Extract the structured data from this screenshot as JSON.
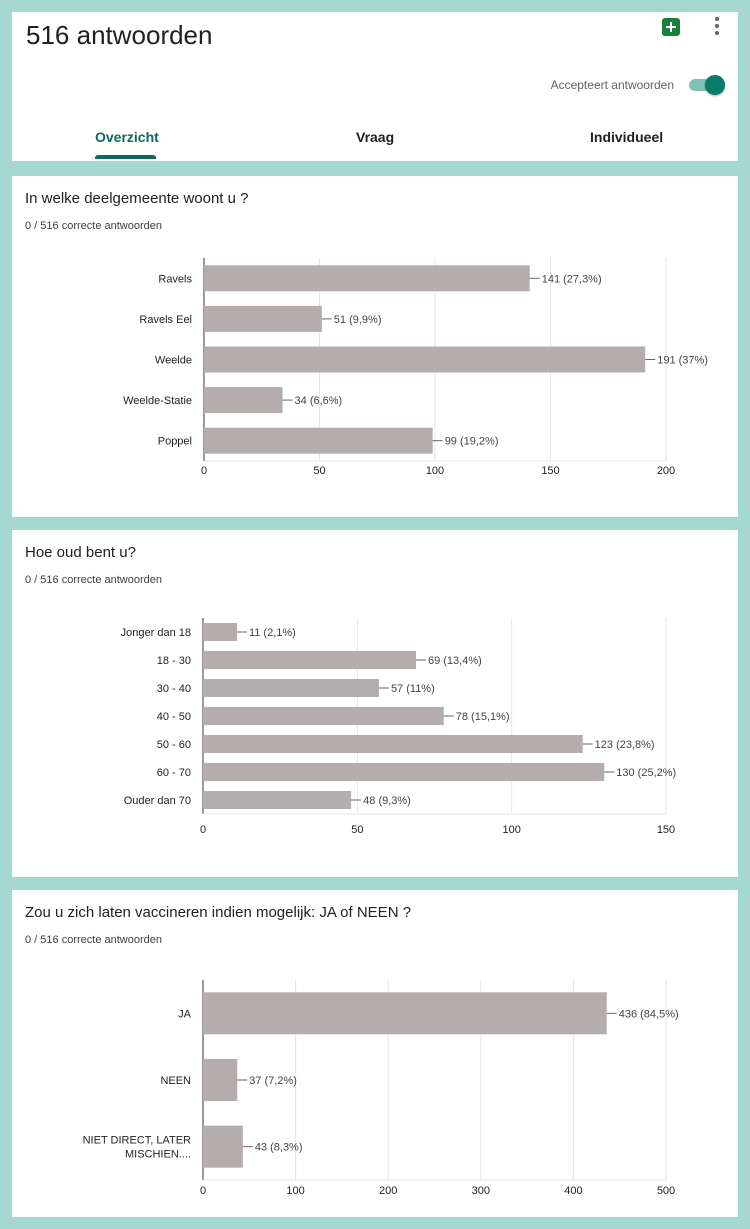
{
  "header": {
    "title": "516 antwoorden",
    "sheets_icon": "google-sheets-icon",
    "more_icon": "more-vertical-icon",
    "accepting_label": "Accepteert antwoorden",
    "accepting": true,
    "tabs": [
      {
        "label": "Overzicht",
        "active": true
      },
      {
        "label": "Vraag",
        "active": false
      },
      {
        "label": "Individueel",
        "active": false
      }
    ]
  },
  "colors": {
    "background": "#a6d8d2",
    "bar": "#b5adad",
    "accent": "#0c6b5e"
  },
  "questions": [
    {
      "title": "In welke deelgemeente woont u ?",
      "subtitle": "0 / 516 correcte antwoorden"
    },
    {
      "title": "Hoe oud bent u?",
      "subtitle": "0 / 516 correcte antwoorden"
    },
    {
      "title": "Zou u zich laten vaccineren indien mogelijk: JA of NEEN ?",
      "subtitle": "0 / 516 correcte antwoorden"
    }
  ],
  "chart_data": [
    {
      "type": "bar",
      "orientation": "horizontal",
      "categories": [
        "Ravels",
        "Ravels Eel",
        "Weelde",
        "Weelde-Statie",
        "Poppel"
      ],
      "values": [
        141,
        51,
        191,
        34,
        99
      ],
      "data_labels": [
        "141 (27,3%)",
        "51 (9,9%)",
        "191 (37%)",
        "34 (6,6%)",
        "99 (19,2%)"
      ],
      "xlim": [
        0,
        200
      ],
      "xticks": [
        0,
        50,
        100,
        150,
        200
      ],
      "grid": true
    },
    {
      "type": "bar",
      "orientation": "horizontal",
      "categories": [
        "Jonger dan 18",
        "18 - 30",
        "30 - 40",
        "40 - 50",
        "50 - 60",
        "60 - 70",
        "Ouder dan 70"
      ],
      "values": [
        11,
        69,
        57,
        78,
        123,
        130,
        48
      ],
      "data_labels": [
        "11 (2,1%)",
        "69 (13,4%)",
        "57 (11%)",
        "78 (15,1%)",
        "123 (23,8%)",
        "130 (25,2%)",
        "48 (9,3%)"
      ],
      "xlim": [
        0,
        150
      ],
      "xticks": [
        0,
        50,
        100,
        150
      ],
      "grid": true
    },
    {
      "type": "bar",
      "orientation": "horizontal",
      "categories": [
        [
          "JA"
        ],
        [
          "NEEN"
        ],
        [
          "NIET DIRECT, LATER",
          "MISCHIEN...."
        ]
      ],
      "values": [
        436,
        37,
        43
      ],
      "data_labels": [
        "436 (84,5%)",
        "37 (7,2%)",
        "43 (8,3%)"
      ],
      "xlim": [
        0,
        500
      ],
      "xticks": [
        0,
        100,
        200,
        300,
        400,
        500
      ],
      "grid": true
    }
  ]
}
